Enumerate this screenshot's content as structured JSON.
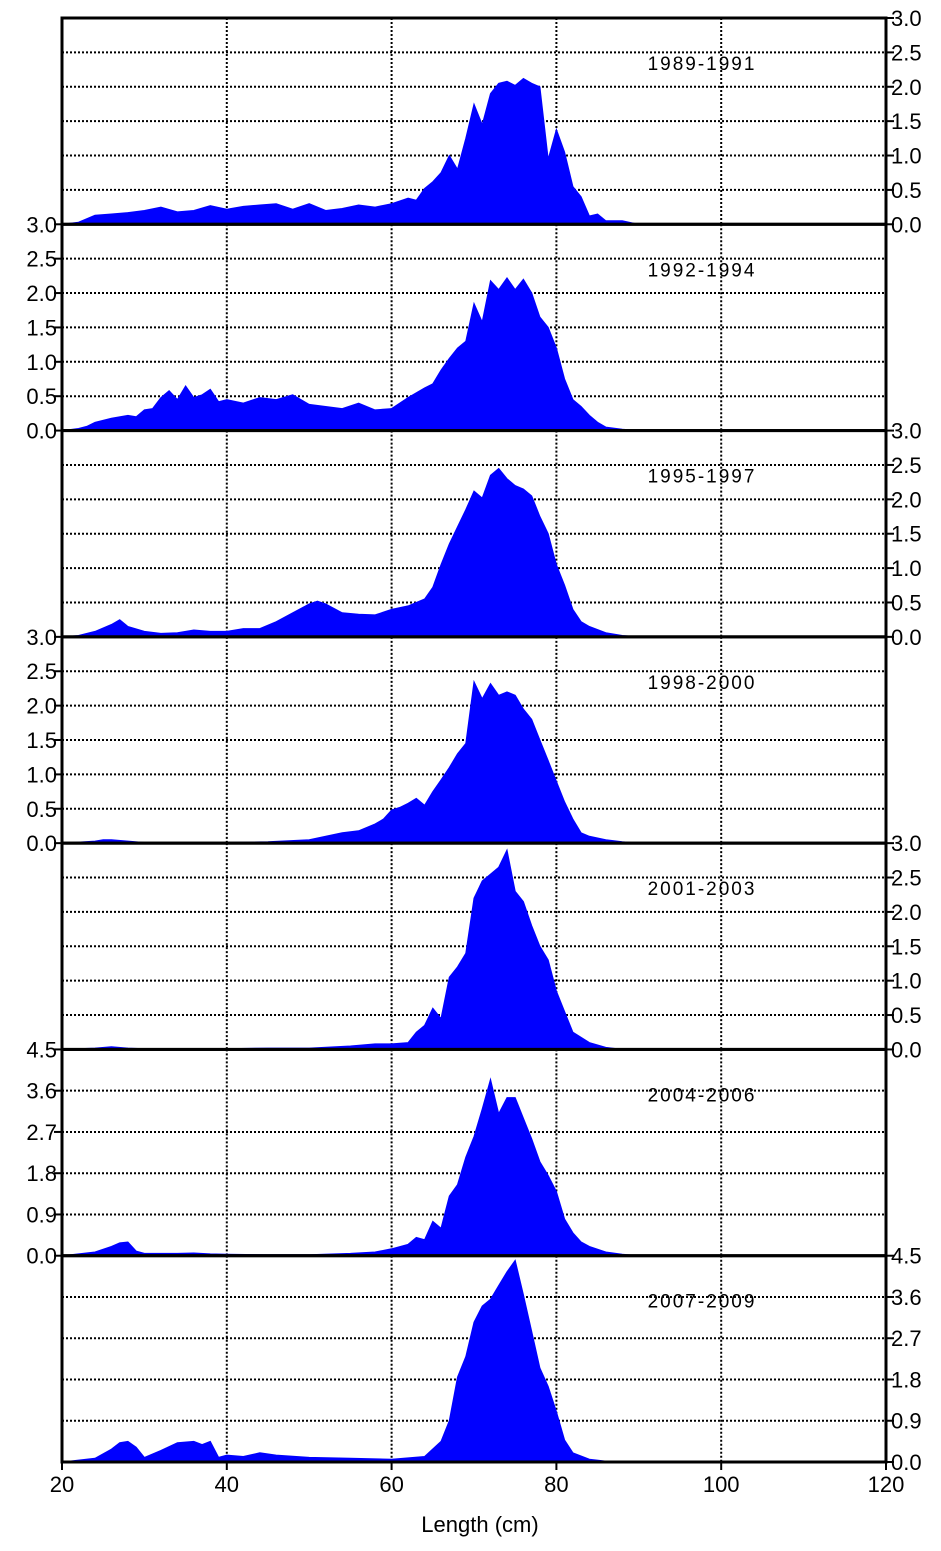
{
  "chart_data": {
    "type": "area",
    "xlabel": "Length (cm)",
    "xlim": [
      20,
      120
    ],
    "x_ticks": [
      20,
      40,
      60,
      80,
      100,
      120
    ],
    "fill_color": "#0000ff",
    "grid": true,
    "panels": [
      {
        "label": "1989-1991",
        "ylim": [
          0,
          3.0
        ],
        "y_ticks": [
          "0.0",
          "0.5",
          "1.0",
          "1.5",
          "2.0",
          "2.5",
          "3.0"
        ],
        "y_axis_side": "right",
        "x": [
          20,
          22,
          24,
          26,
          28,
          30,
          32,
          34,
          36,
          38,
          40,
          42,
          44,
          46,
          48,
          50,
          52,
          54,
          56,
          58,
          60,
          62,
          63,
          64,
          65,
          66,
          67,
          68,
          69,
          70,
          71,
          72,
          73,
          74,
          75,
          76,
          77,
          78,
          79,
          80,
          81,
          82,
          83,
          84,
          85,
          86,
          88,
          90,
          95,
          100,
          110,
          115
        ],
        "y": [
          0,
          0.03,
          0.13,
          0.15,
          0.17,
          0.2,
          0.25,
          0.18,
          0.2,
          0.27,
          0.22,
          0.26,
          0.28,
          0.3,
          0.22,
          0.3,
          0.2,
          0.23,
          0.28,
          0.25,
          0.3,
          0.38,
          0.35,
          0.52,
          0.62,
          0.75,
          1.0,
          0.8,
          1.25,
          1.75,
          1.45,
          1.9,
          2.05,
          2.08,
          2.02,
          2.12,
          2.05,
          2.0,
          0.95,
          1.38,
          1.05,
          0.55,
          0.4,
          0.12,
          0.15,
          0.05,
          0.05,
          0,
          0,
          0,
          0,
          0
        ]
      },
      {
        "label": "1992-1994",
        "ylim": [
          0,
          3.0
        ],
        "y_ticks": [
          "0.0",
          "0.5",
          "1.0",
          "1.5",
          "2.0",
          "2.5",
          "3.0"
        ],
        "y_axis_side": "left",
        "x": [
          20,
          22,
          23,
          24,
          26,
          28,
          29,
          30,
          31,
          32,
          33,
          34,
          35,
          36,
          37,
          38,
          39,
          40,
          42,
          44,
          46,
          48,
          50,
          52,
          54,
          56,
          58,
          60,
          62,
          64,
          65,
          66,
          67,
          68,
          69,
          70,
          71,
          72,
          73,
          74,
          75,
          76,
          77,
          78,
          79,
          80,
          81,
          82,
          83,
          84,
          85,
          86,
          88,
          90,
          95,
          100,
          110,
          115
        ],
        "y": [
          0,
          0.03,
          0.06,
          0.12,
          0.18,
          0.22,
          0.2,
          0.3,
          0.32,
          0.48,
          0.58,
          0.45,
          0.65,
          0.48,
          0.52,
          0.6,
          0.42,
          0.45,
          0.4,
          0.48,
          0.45,
          0.52,
          0.38,
          0.35,
          0.32,
          0.4,
          0.3,
          0.32,
          0.48,
          0.62,
          0.68,
          0.88,
          1.05,
          1.2,
          1.3,
          1.85,
          1.58,
          2.18,
          2.05,
          2.22,
          2.05,
          2.2,
          2.0,
          1.65,
          1.5,
          1.2,
          0.75,
          0.45,
          0.35,
          0.22,
          0.12,
          0.05,
          0.02,
          0,
          0,
          0,
          0,
          0
        ]
      },
      {
        "label": "1995-1997",
        "ylim": [
          0,
          3.0
        ],
        "y_ticks": [
          "0.0",
          "0.5",
          "1.0",
          "1.5",
          "2.0",
          "2.5",
          "3.0"
        ],
        "y_axis_side": "right",
        "x": [
          20,
          22,
          24,
          26,
          27,
          28,
          30,
          32,
          34,
          36,
          38,
          40,
          42,
          44,
          46,
          48,
          50,
          51,
          52,
          54,
          56,
          58,
          60,
          62,
          64,
          65,
          66,
          67,
          68,
          69,
          70,
          71,
          72,
          73,
          74,
          75,
          76,
          77,
          78,
          79,
          80,
          81,
          82,
          83,
          84,
          86,
          88,
          90,
          95,
          100,
          110,
          115
        ],
        "y": [
          0,
          0.02,
          0.08,
          0.18,
          0.25,
          0.15,
          0.08,
          0.05,
          0.06,
          0.1,
          0.08,
          0.08,
          0.12,
          0.12,
          0.22,
          0.35,
          0.48,
          0.52,
          0.48,
          0.35,
          0.33,
          0.32,
          0.4,
          0.45,
          0.55,
          0.72,
          1.05,
          1.35,
          1.6,
          1.85,
          2.12,
          2.02,
          2.35,
          2.45,
          2.3,
          2.2,
          2.15,
          2.05,
          1.75,
          1.5,
          1.05,
          0.75,
          0.4,
          0.22,
          0.15,
          0.06,
          0.02,
          0,
          0,
          0,
          0,
          0
        ]
      },
      {
        "label": "1998-2000",
        "ylim": [
          0,
          3.0
        ],
        "y_ticks": [
          "0.0",
          "0.5",
          "1.0",
          "1.5",
          "2.0",
          "2.5",
          "3.0"
        ],
        "y_axis_side": "left",
        "x": [
          20,
          24,
          25,
          26,
          28,
          30,
          35,
          40,
          45,
          50,
          52,
          54,
          56,
          58,
          59,
          60,
          61,
          62,
          63,
          64,
          65,
          66,
          67,
          68,
          69,
          70,
          71,
          72,
          73,
          74,
          75,
          76,
          77,
          78,
          79,
          80,
          81,
          82,
          83,
          84,
          86,
          88,
          90,
          95,
          100,
          110,
          115
        ],
        "y": [
          0,
          0.03,
          0.05,
          0.05,
          0.03,
          0.01,
          0.01,
          0.01,
          0.02,
          0.05,
          0.1,
          0.15,
          0.18,
          0.28,
          0.35,
          0.48,
          0.52,
          0.58,
          0.65,
          0.55,
          0.75,
          0.92,
          1.1,
          1.3,
          1.45,
          2.35,
          2.1,
          2.32,
          2.15,
          2.2,
          2.15,
          1.95,
          1.8,
          1.5,
          1.2,
          0.9,
          0.6,
          0.35,
          0.15,
          0.1,
          0.05,
          0.02,
          0,
          0,
          0,
          0,
          0
        ]
      },
      {
        "label": "2001-2003",
        "ylim": [
          0,
          3.0
        ],
        "y_ticks": [
          "0.0",
          "0.5",
          "1.0",
          "1.5",
          "2.0",
          "2.5",
          "3.0"
        ],
        "y_axis_side": "right",
        "x": [
          20,
          24,
          26,
          28,
          30,
          35,
          40,
          45,
          50,
          55,
          58,
          60,
          62,
          63,
          64,
          65,
          66,
          67,
          68,
          69,
          70,
          71,
          72,
          73,
          74,
          75,
          76,
          77,
          78,
          79,
          80,
          81,
          82,
          84,
          86,
          88,
          90,
          95,
          100,
          110,
          115
        ],
        "y": [
          0,
          0.02,
          0.04,
          0.02,
          0.01,
          0.01,
          0.01,
          0.02,
          0.02,
          0.05,
          0.08,
          0.08,
          0.1,
          0.25,
          0.35,
          0.6,
          0.45,
          1.05,
          1.2,
          1.4,
          2.2,
          2.45,
          2.55,
          2.65,
          2.9,
          2.3,
          2.15,
          1.8,
          1.5,
          1.3,
          0.85,
          0.55,
          0.25,
          0.1,
          0.03,
          0,
          0,
          0,
          0,
          0,
          0
        ]
      },
      {
        "label": "2004-2006",
        "ylim": [
          0,
          4.5
        ],
        "y_ticks": [
          "0.0",
          "0.9",
          "1.8",
          "2.7",
          "3.6",
          "4.5"
        ],
        "y_axis_side": "left",
        "x": [
          20,
          24,
          26,
          27,
          28,
          29,
          30,
          32,
          34,
          36,
          38,
          40,
          45,
          50,
          55,
          58,
          60,
          62,
          63,
          64,
          65,
          66,
          67,
          68,
          69,
          70,
          71,
          72,
          73,
          74,
          75,
          76,
          77,
          78,
          79,
          80,
          81,
          82,
          83,
          84,
          86,
          88,
          90,
          95,
          100,
          110,
          115
        ],
        "y": [
          0,
          0.08,
          0.2,
          0.28,
          0.3,
          0.1,
          0.05,
          0.05,
          0.05,
          0.06,
          0.04,
          0.03,
          0.02,
          0.02,
          0.05,
          0.08,
          0.15,
          0.25,
          0.4,
          0.35,
          0.75,
          0.6,
          1.3,
          1.55,
          2.15,
          2.6,
          3.2,
          3.85,
          3.1,
          3.45,
          3.45,
          3.0,
          2.55,
          2.05,
          1.75,
          1.4,
          0.8,
          0.5,
          0.3,
          0.2,
          0.08,
          0.03,
          0,
          0,
          0,
          0,
          0
        ]
      },
      {
        "label": "2007-2009",
        "ylim": [
          0,
          4.5
        ],
        "y_ticks": [
          "0.0",
          "0.9",
          "1.8",
          "2.7",
          "3.6",
          "4.5"
        ],
        "y_axis_side": "right",
        "x": [
          20,
          24,
          26,
          27,
          28,
          29,
          30,
          32,
          34,
          36,
          37,
          38,
          39,
          40,
          42,
          44,
          46,
          50,
          55,
          60,
          64,
          66,
          67,
          68,
          69,
          70,
          71,
          72,
          73,
          74,
          75,
          76,
          77,
          78,
          79,
          80,
          81,
          82,
          84,
          86,
          88,
          90,
          95,
          100,
          110,
          115
        ],
        "y": [
          0,
          0.08,
          0.28,
          0.42,
          0.45,
          0.32,
          0.1,
          0.25,
          0.42,
          0.45,
          0.38,
          0.45,
          0.1,
          0.15,
          0.12,
          0.2,
          0.15,
          0.1,
          0.08,
          0.06,
          0.12,
          0.45,
          0.9,
          1.85,
          2.3,
          3.05,
          3.4,
          3.55,
          3.85,
          4.15,
          4.4,
          3.65,
          2.85,
          2.05,
          1.65,
          1.1,
          0.48,
          0.2,
          0.06,
          0.02,
          0,
          0,
          0,
          0,
          0,
          0
        ]
      }
    ]
  }
}
